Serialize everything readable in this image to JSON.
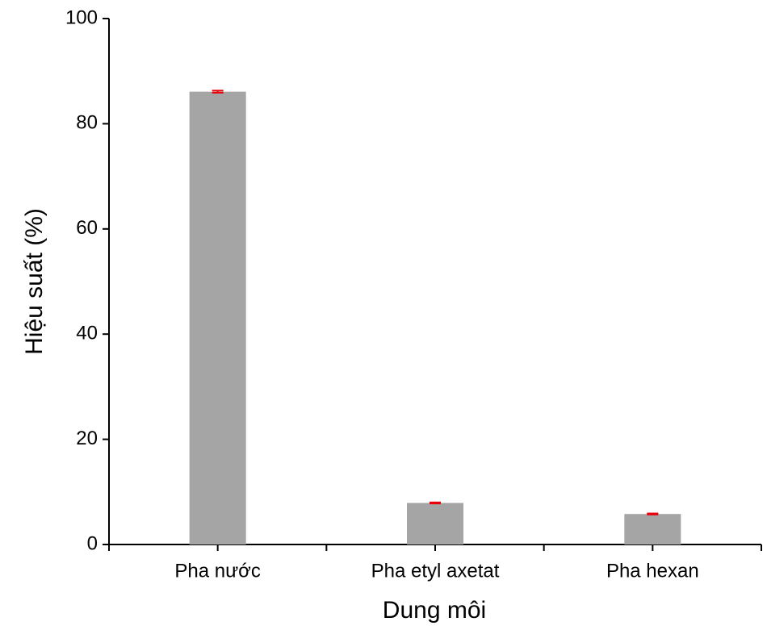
{
  "chart_data": {
    "type": "bar",
    "x_label": "Dung môi",
    "y_label": "Hiệu suất (%)",
    "categories": [
      "Pha nước",
      "Pha etyl axetat",
      "Pha hexan"
    ],
    "values": [
      86.1,
      7.9,
      5.8
    ],
    "errors": [
      0.2,
      0.1,
      0.1
    ],
    "color": "#a5a5a5",
    "error_color": "#e8000b",
    "ylim": [
      0,
      100
    ],
    "yticks": [
      0,
      20,
      40,
      60,
      80,
      100
    ],
    "grid": false
  }
}
